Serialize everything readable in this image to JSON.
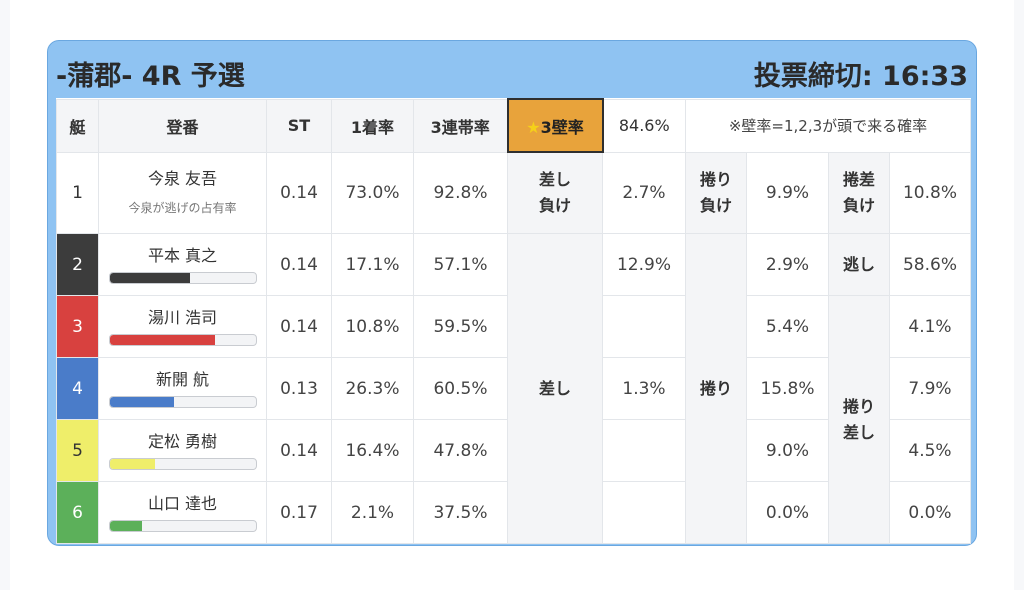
{
  "header": {
    "title": "-蒲郡- 4R 予選",
    "deadline": "投票締切: 16:33"
  },
  "columns": {
    "lane": "艇",
    "name": "登番",
    "st": "ST",
    "win_rate": "1着率",
    "top3_rate": "3連帯率",
    "wall_rate_star": "★",
    "wall_rate_label": "3壁率",
    "wall_rate_value": "84.6%",
    "note": "※壁率=1,2,3が頭で来る確率"
  },
  "rows": [
    {
      "lane": "1",
      "name": "今泉 友吾",
      "sub": "今泉が逃げの占有率",
      "st": "0.14",
      "win": "73.0%",
      "top3": "92.8%"
    },
    {
      "lane": "2",
      "name": "平本 真之",
      "st": "0.14",
      "win": "17.1%",
      "top3": "57.1%",
      "bar": 0.55
    },
    {
      "lane": "3",
      "name": "湯川 浩司",
      "st": "0.14",
      "win": "10.8%",
      "top3": "59.5%",
      "bar": 0.72
    },
    {
      "lane": "4",
      "name": "新開 航",
      "st": "0.13",
      "win": "26.3%",
      "top3": "60.5%",
      "bar": 0.44
    },
    {
      "lane": "5",
      "name": "定松 勇樹",
      "st": "0.14",
      "win": "16.4%",
      "top3": "47.8%",
      "bar": 0.31
    },
    {
      "lane": "6",
      "name": "山口 達也",
      "st": "0.17",
      "win": "2.1%",
      "top3": "37.5%",
      "bar": 0.22
    }
  ],
  "kimarite": {
    "sashi_make_1": "差し",
    "sashi_make_2": "負け",
    "sashi_make_value": "2.7%",
    "sashi_value_r2": "12.9%",
    "sashi_label": "差し",
    "sashi_value_r4": "1.3%",
    "makuri_make_1": "捲り",
    "makuri_make_2": "負け",
    "makuri_make_value": "9.9%",
    "makuri_label": "捲り",
    "makuri_values": [
      "2.9%",
      "5.4%",
      "15.8%",
      "9.0%",
      "0.0%"
    ],
    "makurisashi_make_1": "捲差",
    "makurisashi_make_2": "負け",
    "makurisashi_make_value": "10.8%",
    "nige_label": "逃し",
    "nige_value": "58.6%",
    "makurisashi_label_1": "捲り",
    "makurisashi_label_2": "差し",
    "makurisashi_values": [
      "4.1%",
      "7.9%",
      "4.5%",
      "0.0%"
    ]
  },
  "colors": {
    "header_bg": "#8fc3f2",
    "wall_highlight": "#e8a33b",
    "lane2": "#3c3c3c",
    "lane3": "#d8413f",
    "lane4": "#4a7cc9",
    "lane5": "#efee6a",
    "lane6": "#5cb05a"
  }
}
